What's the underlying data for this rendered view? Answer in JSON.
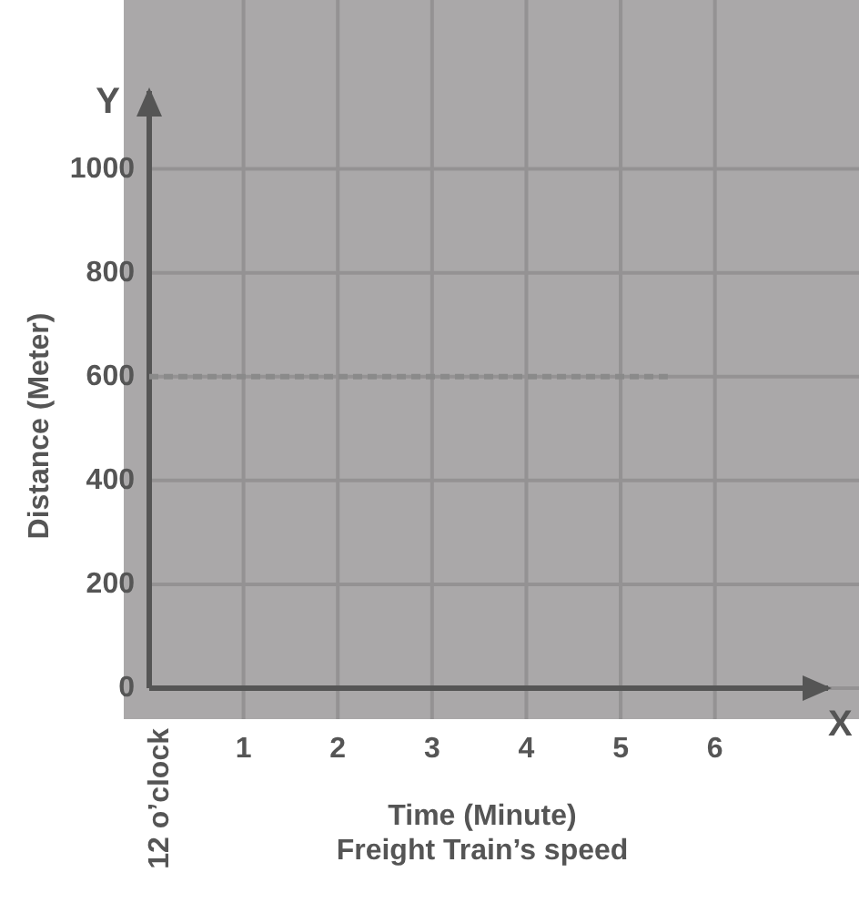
{
  "chart_data": {
    "type": "line",
    "title": "Freight Train’s speed",
    "xlabel": "Time (Minute)",
    "ylabel": "Distance (Meter)",
    "annotations": [
      "X",
      "Y",
      "12 o’clock"
    ],
    "xlim": [
      0,
      7.2
    ],
    "xticks": [
      1,
      2,
      3,
      4,
      5,
      6
    ],
    "ylim": [
      0,
      1150
    ],
    "yticks": [
      0,
      200,
      400,
      600,
      800,
      1000
    ],
    "grid": true,
    "marker": "none",
    "line_style": "dashed",
    "series": [
      {
        "color": "#8a8a8a",
        "x": [
          0,
          5.5
        ],
        "values": [
          600,
          600
        ]
      }
    ]
  }
}
